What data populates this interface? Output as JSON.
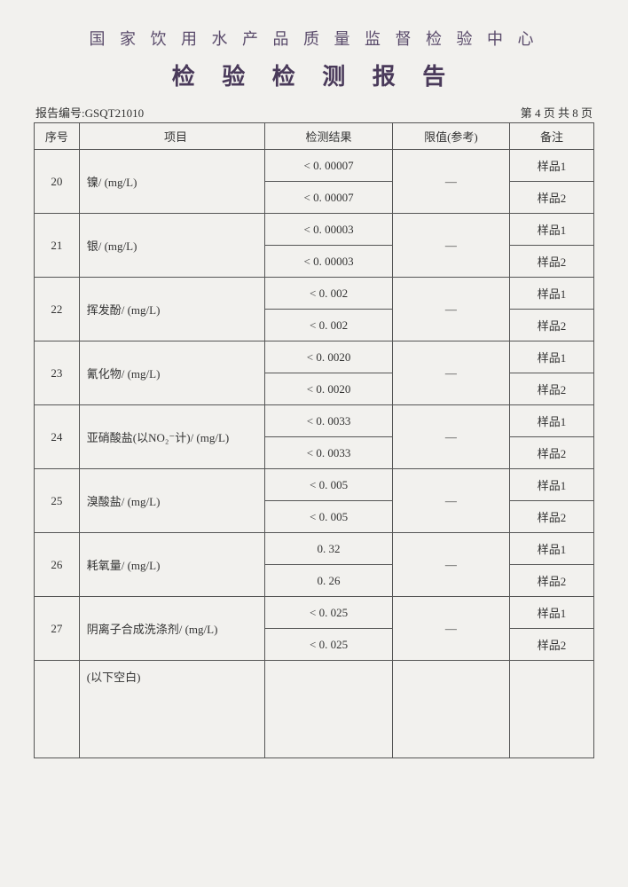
{
  "header": {
    "org": "国 家 饮 用 水 产 品 质 量 监 督 检 验 中 心",
    "title": "检 验 检 测 报 告",
    "report_label": "报告编号:",
    "report_no": "GSQT21010",
    "page_info": "第 4 页 共 8 页"
  },
  "columns": {
    "seq": "序号",
    "item": "项目",
    "result": "检测结果",
    "limit": "限值(参考)",
    "note": "备注"
  },
  "rows": [
    {
      "seq": "20",
      "item": "镍/ (mg/L)",
      "r1": "< 0. 00007",
      "r2": "< 0. 00007",
      "lim": "—",
      "n1": "样品1",
      "n2": "样品2"
    },
    {
      "seq": "21",
      "item": "银/ (mg/L)",
      "r1": "< 0. 00003",
      "r2": "< 0. 00003",
      "lim": "—",
      "n1": "样品1",
      "n2": "样品2"
    },
    {
      "seq": "22",
      "item": "挥发酚/ (mg/L)",
      "r1": "< 0. 002",
      "r2": "< 0. 002",
      "lim": "—",
      "n1": "样品1",
      "n2": "样品2"
    },
    {
      "seq": "23",
      "item": "氰化物/ (mg/L)",
      "r1": "< 0. 0020",
      "r2": "< 0. 0020",
      "lim": "—",
      "n1": "样品1",
      "n2": "样品2"
    },
    {
      "seq": "24",
      "item": "亚硝酸盐(以NO₂⁻计)/ (mg/L)",
      "r1": "< 0. 0033",
      "r2": "< 0. 0033",
      "lim": "—",
      "n1": "样品1",
      "n2": "样品2"
    },
    {
      "seq": "25",
      "item": "溴酸盐/ (mg/L)",
      "r1": "< 0. 005",
      "r2": "< 0. 005",
      "lim": "—",
      "n1": "样品1",
      "n2": "样品2"
    },
    {
      "seq": "26",
      "item": "耗氧量/ (mg/L)",
      "r1": "0. 32",
      "r2": "0. 26",
      "lim": "—",
      "n1": "样品1",
      "n2": "样品2"
    },
    {
      "seq": "27",
      "item": "阴离子合成洗涤剂/ (mg/L)",
      "r1": "< 0. 025",
      "r2": "< 0. 025",
      "lim": "—",
      "n1": "样品1",
      "n2": "样品2"
    }
  ],
  "blank_text": "(以下空白)",
  "style": {
    "page_bg": "#f2f1ee",
    "header_color": "#4a3a5a",
    "border_color": "#555",
    "dash_color": "#777",
    "body_fontsize": 13,
    "title_fontsize": 26,
    "org_fontsize": 18
  }
}
